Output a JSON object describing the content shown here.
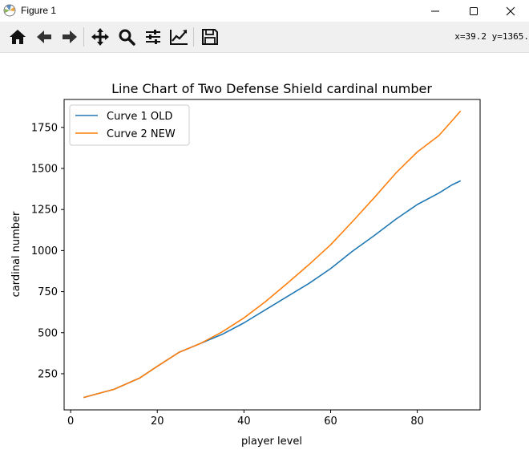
{
  "window": {
    "title": "Figure 1",
    "minimize_icon": "minimize-icon",
    "maximize_icon": "maximize-icon",
    "close_icon": "close-icon"
  },
  "toolbar": {
    "buttons": [
      {
        "name": "home-button",
        "icon": "home-icon"
      },
      {
        "name": "back-button",
        "icon": "arrow-left-icon"
      },
      {
        "name": "forward-button",
        "icon": "arrow-right-icon"
      },
      {
        "name": "pan-button",
        "icon": "move-icon"
      },
      {
        "name": "zoom-button",
        "icon": "magnifier-icon"
      },
      {
        "name": "configure-subplots-button",
        "icon": "sliders-icon"
      },
      {
        "name": "edit-axis-button",
        "icon": "chart-line-icon"
      },
      {
        "name": "save-button",
        "icon": "floppy-disk-icon"
      }
    ],
    "coords": "x=39.2 y=1365."
  },
  "chart_data": {
    "type": "line",
    "title": "Line Chart of Two Defense Shield cardinal number",
    "xlabel": "player level",
    "ylabel": "cardinal number",
    "xlim": [
      -1.5,
      94.5
    ],
    "ylim": [
      30,
      1920
    ],
    "xticks": [
      0,
      20,
      40,
      60,
      80
    ],
    "yticks": [
      250,
      500,
      750,
      1000,
      1250,
      1500,
      1750
    ],
    "grid": false,
    "legend_position": "upper-left",
    "series": [
      {
        "name": "Curve 1 OLD",
        "color": "#1f77b4",
        "x": [
          3,
          5,
          10,
          16,
          20,
          25,
          30,
          35,
          40,
          45,
          50,
          55,
          60,
          65,
          70,
          75,
          80,
          85,
          88,
          90
        ],
        "y": [
          105,
          120,
          155,
          225,
          295,
          380,
          435,
          490,
          560,
          640,
          720,
          800,
          890,
          995,
          1090,
          1190,
          1280,
          1350,
          1400,
          1425
        ]
      },
      {
        "name": "Curve 2 NEW",
        "color": "#ff7f0e",
        "x": [
          3,
          5,
          10,
          16,
          20,
          25,
          30,
          35,
          40,
          45,
          50,
          55,
          60,
          65,
          70,
          75,
          80,
          85,
          88,
          90
        ],
        "y": [
          105,
          120,
          155,
          225,
          295,
          380,
          435,
          505,
          590,
          690,
          800,
          915,
          1035,
          1175,
          1320,
          1470,
          1600,
          1700,
          1790,
          1850
        ]
      }
    ]
  }
}
